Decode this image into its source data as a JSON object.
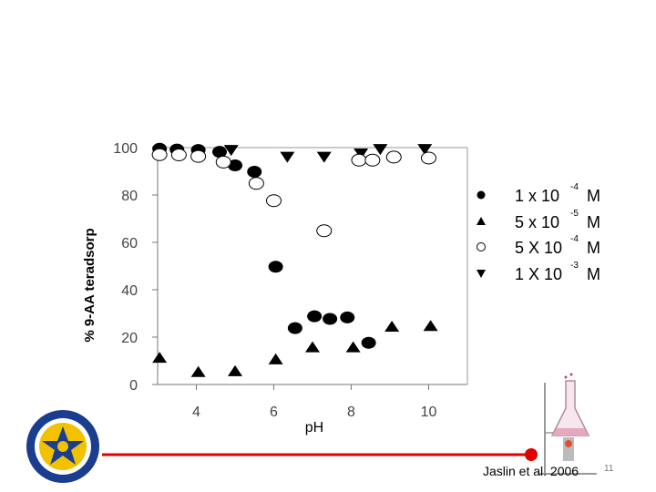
{
  "chart_data": {
    "type": "scatter",
    "title": "",
    "xlabel": "pH",
    "ylabel": "% 9-AA teradsorp",
    "xlim": [
      3,
      11
    ],
    "ylim": [
      0,
      100
    ],
    "xticks": [
      4,
      6,
      8,
      10
    ],
    "yticks": [
      0,
      20,
      40,
      60,
      80,
      100
    ],
    "grid": false,
    "legend_position": "right",
    "series": [
      {
        "name": "1 x 10-4 M",
        "marker": "filled-circle",
        "color": "#000000",
        "points": [
          [
            3.05,
            99.5
          ],
          [
            3.5,
            99.2
          ],
          [
            4.05,
            99.0
          ],
          [
            4.6,
            98.2
          ],
          [
            5.0,
            92.5
          ],
          [
            5.5,
            89.8
          ],
          [
            6.05,
            49.7
          ],
          [
            6.55,
            23.8
          ],
          [
            7.05,
            28.8
          ],
          [
            7.45,
            27.7
          ],
          [
            7.9,
            28.3
          ],
          [
            8.45,
            17.6
          ]
        ]
      },
      {
        "name": "5 x 10-5 M",
        "marker": "filled-triangle",
        "color": "#000000",
        "points": [
          [
            3.05,
            11.5
          ],
          [
            4.05,
            5.5
          ],
          [
            5.0,
            5.8
          ],
          [
            6.05,
            10.8
          ],
          [
            7.0,
            15.9
          ],
          [
            8.05,
            15.9
          ],
          [
            9.05,
            24.6
          ],
          [
            10.05,
            24.9
          ]
        ]
      },
      {
        "name": "5 X 10-4 M",
        "marker": "open-circle",
        "color": "#000000",
        "points": [
          [
            3.05,
            97.0
          ],
          [
            3.55,
            96.9
          ],
          [
            4.05,
            96.3
          ],
          [
            4.7,
            93.9
          ],
          [
            5.55,
            84.9
          ],
          [
            6.0,
            77.6
          ],
          [
            7.3,
            64.9
          ],
          [
            8.2,
            94.7
          ],
          [
            8.55,
            94.7
          ],
          [
            9.1,
            96.0
          ],
          [
            10.0,
            95.6
          ]
        ]
      },
      {
        "name": "1 X 10-3 M",
        "marker": "filled-triangle-down",
        "color": "#000000",
        "points": [
          [
            4.9,
            98.8
          ],
          [
            6.35,
            95.9
          ],
          [
            7.3,
            95.9
          ],
          [
            8.25,
            97.3
          ],
          [
            8.75,
            99.2
          ],
          [
            9.9,
            99.2
          ]
        ]
      }
    ]
  },
  "legend": {
    "entries": [
      {
        "base": "1 x 10",
        "exp": "-4",
        "unit": "M"
      },
      {
        "base": "5 x 10",
        "exp": "-5",
        "unit": "M"
      },
      {
        "base": "5 X 10",
        "exp": "-4",
        "unit": "M"
      },
      {
        "base": "1 X 10",
        "exp": "-3",
        "unit": "M"
      }
    ]
  },
  "footer": {
    "citation": "Jaslin et al. 2006",
    "page_number": "11",
    "accent_color": "#e00000"
  }
}
